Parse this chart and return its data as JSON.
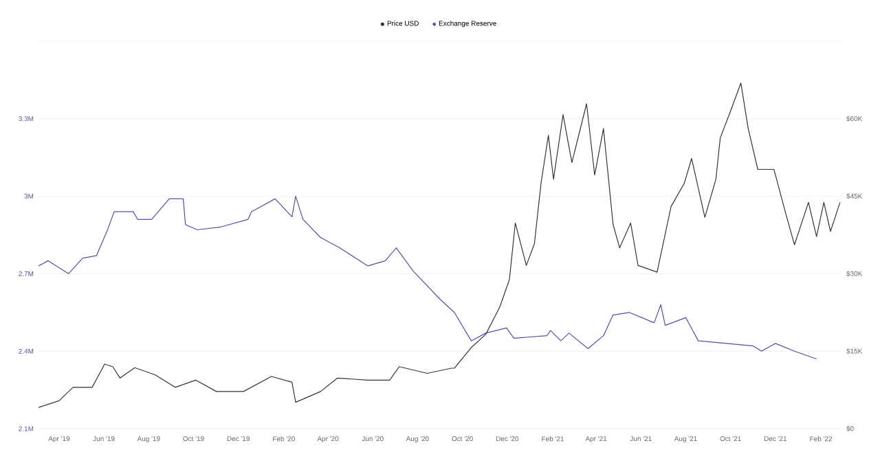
{
  "chart_data": {
    "type": "line",
    "xlim": [
      "2019-03-04",
      "2022-03-01"
    ],
    "xticks": [
      {
        "value": "2019-04-01",
        "label": "Apr '19"
      },
      {
        "value": "2019-06-01",
        "label": "Jun '19"
      },
      {
        "value": "2019-08-01",
        "label": "Aug '19"
      },
      {
        "value": "2019-10-01",
        "label": "Oct '19"
      },
      {
        "value": "2019-12-01",
        "label": "Dec '19"
      },
      {
        "value": "2020-02-01",
        "label": "Feb '20"
      },
      {
        "value": "2020-04-01",
        "label": "Apr '20"
      },
      {
        "value": "2020-06-01",
        "label": "Jun '20"
      },
      {
        "value": "2020-08-01",
        "label": "Aug '20"
      },
      {
        "value": "2020-10-01",
        "label": "Oct '20"
      },
      {
        "value": "2020-12-01",
        "label": "Dec '20"
      },
      {
        "value": "2021-02-01",
        "label": "Feb '21"
      },
      {
        "value": "2021-04-01",
        "label": "Apr '21"
      },
      {
        "value": "2021-06-01",
        "label": "Jun '21"
      },
      {
        "value": "2021-08-01",
        "label": "Aug '21"
      },
      {
        "value": "2021-10-01",
        "label": "Oct '21"
      },
      {
        "value": "2021-12-01",
        "label": "Dec '21"
      },
      {
        "value": "2022-02-01",
        "label": "Feb '22"
      }
    ],
    "ylim": [
      2.1,
      3.6
    ],
    "yticks": [
      {
        "value": 2.1,
        "label": "2.1M"
      },
      {
        "value": 2.4,
        "label": "2.4M"
      },
      {
        "value": 2.7,
        "label": "2.7M"
      },
      {
        "value": 3.0,
        "label": "3M"
      },
      {
        "value": 3.3,
        "label": "3.3M"
      },
      {
        "value": 3.6,
        "label": null
      }
    ],
    "y2lim": [
      0,
      75
    ],
    "y2ticks": [
      {
        "value": 0,
        "label": "$0"
      },
      {
        "value": 15,
        "label": "$15K"
      },
      {
        "value": 30,
        "label": "$30K"
      },
      {
        "value": 45,
        "label": "$45K"
      },
      {
        "value": 60,
        "label": "$60K"
      },
      {
        "value": 75,
        "label": null
      }
    ],
    "grid": "y",
    "legend": "top",
    "series": [
      {
        "name": "Price USD",
        "color": "#333333",
        "axis": "y2",
        "x": [
          "2019-03-04",
          "2019-04-01",
          "2019-04-20",
          "2019-05-16",
          "2019-06-02",
          "2019-06-13",
          "2019-06-23",
          "2019-07-13",
          "2019-08-10",
          "2019-09-06",
          "2019-10-04",
          "2019-11-01",
          "2019-12-08",
          "2020-01-15",
          "2020-02-12",
          "2020-02-17",
          "2020-03-22",
          "2020-04-14",
          "2020-05-25",
          "2020-06-24",
          "2020-07-07",
          "2020-08-14",
          "2020-09-16",
          "2020-09-20",
          "2020-10-13",
          "2020-11-02",
          "2020-11-21",
          "2020-12-04",
          "2020-12-12",
          "2020-12-27",
          "2021-01-07",
          "2021-01-16",
          "2021-01-26",
          "2021-02-02",
          "2021-02-15",
          "2021-02-27",
          "2021-03-19",
          "2021-03-30",
          "2021-04-11",
          "2021-04-24",
          "2021-05-03",
          "2021-05-18",
          "2021-05-28",
          "2021-06-23",
          "2021-07-12",
          "2021-07-30",
          "2021-08-09",
          "2021-08-27",
          "2021-09-11",
          "2021-09-17",
          "2021-09-30",
          "2021-10-15",
          "2021-10-25",
          "2021-11-07",
          "2021-11-29",
          "2021-12-14",
          "2021-12-27",
          "2022-01-15",
          "2022-01-26",
          "2022-02-05",
          "2022-02-14",
          "2022-02-27"
        ],
        "values": [
          4.1,
          5.4,
          8.0,
          8.0,
          12.5,
          12.0,
          9.8,
          11.8,
          10.4,
          8.0,
          9.4,
          7.2,
          7.2,
          10.1,
          9.0,
          5.1,
          7.2,
          9.8,
          9.4,
          9.4,
          12.0,
          10.7,
          11.7,
          11.7,
          15.7,
          18.3,
          23.6,
          28.9,
          39.8,
          31.6,
          35.8,
          47.5,
          56.8,
          48.3,
          60.8,
          51.5,
          62.9,
          49.1,
          58.1,
          39.6,
          35.0,
          39.8,
          31.6,
          30.3,
          43.0,
          47.5,
          52.3,
          40.9,
          48.3,
          56.3,
          61.1,
          66.9,
          58.1,
          50.2,
          50.2,
          42.2,
          35.6,
          43.8,
          37.2,
          43.8,
          38.2,
          43.8
        ]
      },
      {
        "name": "Exchange Reserve",
        "color": "#4f4fa8",
        "axis": "y",
        "x": [
          "2019-03-04",
          "2019-03-17",
          "2019-04-14",
          "2019-05-03",
          "2019-05-22",
          "2019-06-06",
          "2019-06-15",
          "2019-07-11",
          "2019-07-17",
          "2019-08-05",
          "2019-08-29",
          "2019-09-17",
          "2019-09-20",
          "2019-10-06",
          "2019-11-06",
          "2019-12-14",
          "2019-12-19",
          "2020-01-20",
          "2020-02-12",
          "2020-02-17",
          "2020-02-27",
          "2020-03-22",
          "2020-04-17",
          "2020-05-25",
          "2020-06-18",
          "2020-07-03",
          "2020-07-26",
          "2020-09-01",
          "2020-09-20",
          "2020-10-13",
          "2020-11-02",
          "2020-11-30",
          "2020-12-10",
          "2021-01-24",
          "2021-01-29",
          "2021-02-12",
          "2021-02-23",
          "2021-03-21",
          "2021-04-11",
          "2021-04-24",
          "2021-05-16",
          "2021-06-19",
          "2021-06-28",
          "2021-07-04",
          "2021-08-01",
          "2021-08-18",
          "2021-09-25",
          "2021-11-01",
          "2021-11-12",
          "2021-12-01",
          "2021-12-27",
          "2022-01-26"
        ],
        "values": [
          2.73,
          2.75,
          2.7,
          2.76,
          2.77,
          2.87,
          2.94,
          2.94,
          2.91,
          2.91,
          2.99,
          2.99,
          2.89,
          2.87,
          2.88,
          2.91,
          2.94,
          2.99,
          2.92,
          3.0,
          2.91,
          2.84,
          2.8,
          2.73,
          2.75,
          2.8,
          2.71,
          2.6,
          2.55,
          2.44,
          2.47,
          2.49,
          2.45,
          2.46,
          2.48,
          2.44,
          2.47,
          2.41,
          2.46,
          2.54,
          2.55,
          2.51,
          2.58,
          2.5,
          2.53,
          2.44,
          2.43,
          2.42,
          2.4,
          2.43,
          2.4,
          2.37
        ]
      }
    ]
  }
}
